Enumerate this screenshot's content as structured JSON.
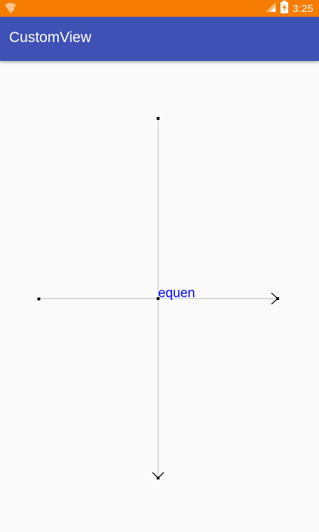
{
  "status_bar": {
    "time": "3:25",
    "icons": [
      "wifi-question-icon",
      "signal-icon",
      "battery-charging-icon"
    ],
    "background": "#f57c00"
  },
  "app_bar": {
    "title": "CustomView",
    "background": "#3f51b5"
  },
  "custom_view": {
    "label": "equen",
    "label_color": "#0000ff",
    "axis_color": "#c8c8c8",
    "point_color": "#000000"
  }
}
